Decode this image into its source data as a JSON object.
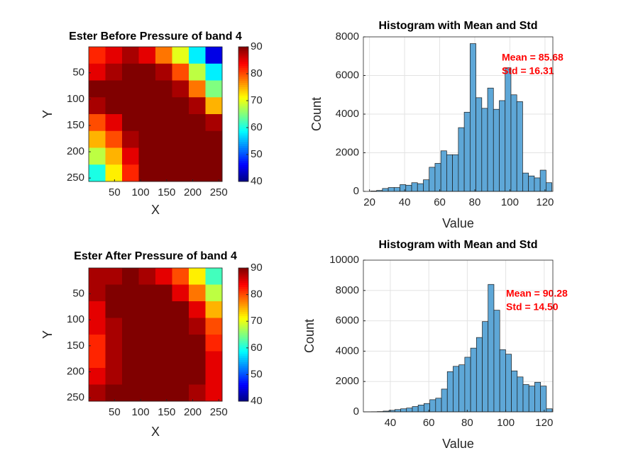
{
  "chart_data": [
    {
      "type": "heatmap",
      "title": "Ester Before Pressure of band 4",
      "x_label": "X",
      "y_label": "Y",
      "x": [
        16.5,
        48.5,
        80.5,
        112.5,
        144.5,
        176.5,
        208.5,
        240.5
      ],
      "y": [
        16.5,
        48.5,
        80.5,
        112.5,
        144.5,
        176.5,
        208.5,
        240.5
      ],
      "z": [
        [
          82,
          85,
          88,
          85,
          78,
          70,
          58,
          45
        ],
        [
          85,
          88,
          90,
          90,
          88,
          80,
          68,
          58
        ],
        [
          90,
          90,
          90,
          90,
          90,
          88,
          78,
          65
        ],
        [
          88,
          90,
          90,
          90,
          90,
          90,
          88,
          75
        ],
        [
          80,
          85,
          90,
          90,
          90,
          90,
          90,
          88
        ],
        [
          75,
          80,
          88,
          90,
          90,
          90,
          90,
          90
        ],
        [
          68,
          75,
          85,
          90,
          90,
          90,
          90,
          90
        ],
        [
          60,
          72,
          82,
          90,
          90,
          90,
          90,
          90
        ]
      ],
      "xlim": [
        0.5,
        256.5
      ],
      "ylim": [
        0.5,
        256.5
      ],
      "y_reversed": true,
      "xticks": [
        50,
        100,
        150,
        200,
        250
      ],
      "yticks": [
        50,
        100,
        150,
        200,
        250
      ],
      "colormap": "jet",
      "clim": [
        40,
        90
      ],
      "colorbar_ticks": [
        40,
        50,
        60,
        70,
        80,
        90
      ]
    },
    {
      "type": "histogram",
      "title": "Histogram with Mean and Std",
      "x_label": "Value",
      "y_label": "Count",
      "bins": [
        20.7,
        24.03,
        27.36,
        30.69,
        34.02,
        37.35,
        40.68,
        44.01,
        47.34,
        50.67,
        54,
        57.33,
        60.66,
        63.99,
        67.32,
        70.65,
        73.98,
        77.31,
        80.64,
        83.97,
        87.3,
        90.63,
        93.96,
        97.29,
        100.62,
        103.95,
        107.28,
        110.61,
        113.94,
        117.27,
        120.6,
        123.93
      ],
      "values": [
        20,
        50,
        150,
        200,
        200,
        350,
        320,
        450,
        400,
        600,
        1250,
        1450,
        2100,
        1900,
        1900,
        3300,
        4100,
        7650,
        4850,
        4300,
        5350,
        4250,
        4700,
        6400,
        5000,
        4650,
        950,
        800,
        700,
        1100,
        450
      ],
      "color": "#5ea7d7",
      "xlim": [
        16.5,
        124.5
      ],
      "ylim": [
        0,
        8000
      ],
      "xticks": [
        20,
        40,
        60,
        80,
        100,
        120
      ],
      "yticks": [
        0,
        2000,
        4000,
        6000,
        8000
      ],
      "grid": true,
      "annotations": [
        "Mean = 85.68",
        "Std = 16.31"
      ]
    },
    {
      "type": "heatmap",
      "title": "Ester After Pressure of band 4",
      "x_label": "X",
      "y_label": "Y",
      "x": [
        16.5,
        48.5,
        80.5,
        112.5,
        144.5,
        176.5,
        208.5,
        240.5
      ],
      "y": [
        16.5,
        48.5,
        80.5,
        112.5,
        144.5,
        176.5,
        208.5,
        240.5
      ],
      "z": [
        [
          88,
          88,
          90,
          88,
          85,
          80,
          72,
          62
        ],
        [
          88,
          90,
          90,
          90,
          90,
          85,
          78,
          68
        ],
        [
          85,
          90,
          90,
          90,
          90,
          90,
          85,
          75
        ],
        [
          85,
          88,
          90,
          90,
          90,
          90,
          88,
          80
        ],
        [
          82,
          88,
          90,
          90,
          90,
          90,
          90,
          82
        ],
        [
          82,
          88,
          90,
          90,
          90,
          90,
          90,
          85
        ],
        [
          85,
          88,
          90,
          90,
          90,
          90,
          90,
          85
        ],
        [
          88,
          90,
          90,
          90,
          90,
          90,
          88,
          85
        ]
      ],
      "xlim": [
        0.5,
        256.5
      ],
      "ylim": [
        0.5,
        256.5
      ],
      "y_reversed": true,
      "xticks": [
        50,
        100,
        150,
        200,
        250
      ],
      "yticks": [
        50,
        100,
        150,
        200,
        250
      ],
      "colormap": "jet",
      "clim": [
        40,
        90
      ],
      "colorbar_ticks": [
        40,
        50,
        60,
        70,
        80,
        90
      ]
    },
    {
      "type": "histogram",
      "title": "Histogram with Mean and Std",
      "x_label": "Value",
      "y_label": "Count",
      "bins": [
        27.2,
        30.23,
        33.26,
        36.29,
        39.32,
        42.35,
        45.38,
        48.41,
        51.44,
        54.47,
        57.5,
        60.53,
        63.56,
        66.59,
        69.62,
        72.65,
        75.68,
        78.71,
        81.74,
        84.77,
        87.8,
        90.83,
        93.86,
        96.89,
        99.92,
        102.95,
        105.98,
        109.01,
        112.04,
        115.07,
        118.1,
        121.13,
        124.16
      ],
      "values": [
        5,
        10,
        20,
        50,
        100,
        150,
        200,
        250,
        350,
        450,
        550,
        800,
        900,
        1500,
        2650,
        3000,
        3100,
        3600,
        4200,
        4900,
        5950,
        8400,
        6700,
        4100,
        3800,
        2700,
        2300,
        1800,
        1700,
        1950,
        1700,
        200
      ],
      "color": "#5ea7d7",
      "xlim": [
        26,
        124.5
      ],
      "ylim": [
        0,
        10000
      ],
      "xticks": [
        40,
        60,
        80,
        100,
        120
      ],
      "yticks": [
        0,
        2000,
        4000,
        6000,
        8000,
        10000
      ],
      "grid": true,
      "annotations": [
        "Mean = 90.28",
        "Std = 14.50"
      ]
    }
  ]
}
